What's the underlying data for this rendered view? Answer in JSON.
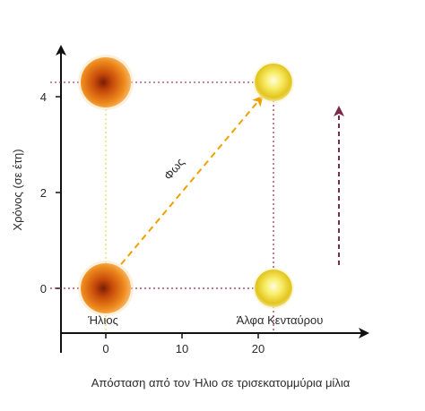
{
  "chart_data": {
    "type": "diagram",
    "xlabel": "Απόσταση από τον Ήλιο σε τρισεκατομμύρια μίλια",
    "ylabel": "Χρόνος (σε έτη)",
    "x_ticks": [
      "0",
      "10",
      "20"
    ],
    "y_ticks": [
      "0",
      "2",
      "4"
    ],
    "objects": [
      {
        "name": "Ήλιος",
        "x": 0,
        "y": 0,
        "kind": "sun"
      },
      {
        "name": "Ήλιος",
        "x": 0,
        "y": 4.3,
        "kind": "sun"
      },
      {
        "name": "Άλφα Κενταύρου",
        "x": 22,
        "y": 0,
        "kind": "star"
      },
      {
        "name": "Άλφα Κενταύρου",
        "x": 22,
        "y": 4.3,
        "kind": "star"
      }
    ],
    "light_path": {
      "label": "Φως",
      "from": {
        "x": 2,
        "y": 0.5
      },
      "to": {
        "x": 20.5,
        "y": 4.0
      }
    },
    "colors": {
      "axis": "#111111",
      "guide": "#9a2a4a",
      "light": "#f0a000",
      "time_arrow": "#7a2a4a"
    }
  },
  "labels": {
    "sun_bottom": "Ήλιος",
    "alpha_bottom": "Άλφα Κενταύρου",
    "light": "Φως"
  }
}
